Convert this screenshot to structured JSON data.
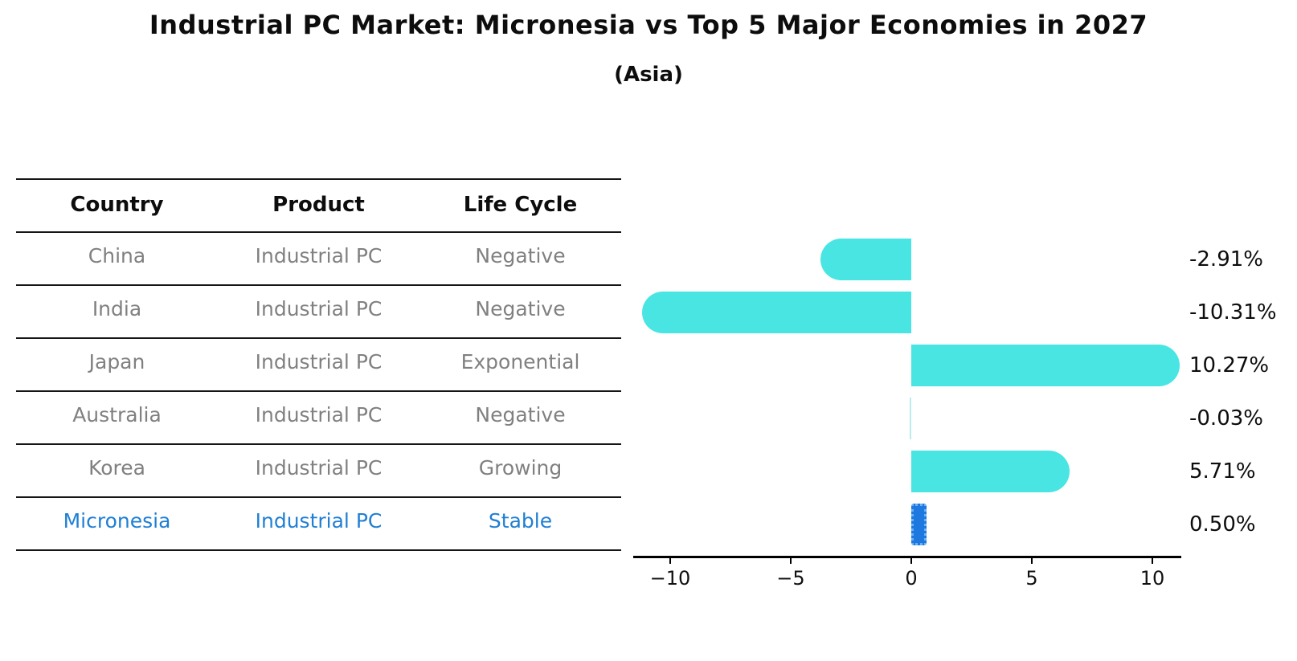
{
  "title": "Industrial PC Market: Micronesia vs Top 5 Major Economies in 2027",
  "subtitle": "(Asia)",
  "table": {
    "columns": [
      "Country",
      "Product",
      "Life Cycle"
    ],
    "rows": [
      {
        "country": "China",
        "product": "Industrial PC",
        "life_cycle": "Negative",
        "highlight": false
      },
      {
        "country": "India",
        "product": "Industrial PC",
        "life_cycle": "Negative",
        "highlight": false
      },
      {
        "country": "Japan",
        "product": "Industrial PC",
        "life_cycle": "Exponential",
        "highlight": false
      },
      {
        "country": "Australia",
        "product": "Industrial PC",
        "life_cycle": "Negative",
        "highlight": false
      },
      {
        "country": "Korea",
        "product": "Industrial PC",
        "life_cycle": "Growing",
        "highlight": false
      },
      {
        "country": "Micronesia",
        "product": "Industrial PC",
        "life_cycle": "Stable",
        "highlight": true
      }
    ]
  },
  "chart_data": {
    "type": "bar",
    "orientation": "horizontal",
    "categories": [
      "China",
      "India",
      "Japan",
      "Australia",
      "Korea",
      "Micronesia"
    ],
    "values": [
      -2.91,
      -10.31,
      10.27,
      -0.03,
      5.71,
      0.5
    ],
    "value_labels": [
      "-2.91%",
      "-10.31%",
      "10.27%",
      "-0.03%",
      "5.71%",
      "0.50%"
    ],
    "highlight_index": 5,
    "x_ticks": [
      -10,
      -5,
      0,
      5,
      10
    ],
    "x_tick_labels": [
      "−10",
      "−5",
      "0",
      "5",
      "10"
    ],
    "xlim": [
      -11.5,
      11.2
    ],
    "grid": false,
    "legend": "none",
    "bar_color": "#49E5E3",
    "highlight_bar_color": "#1D79E0",
    "highlight_text_color": "#1F7FD4",
    "axis_color": "#000000",
    "label_color": "#0D0D0D",
    "table_text_color": "#808080"
  }
}
